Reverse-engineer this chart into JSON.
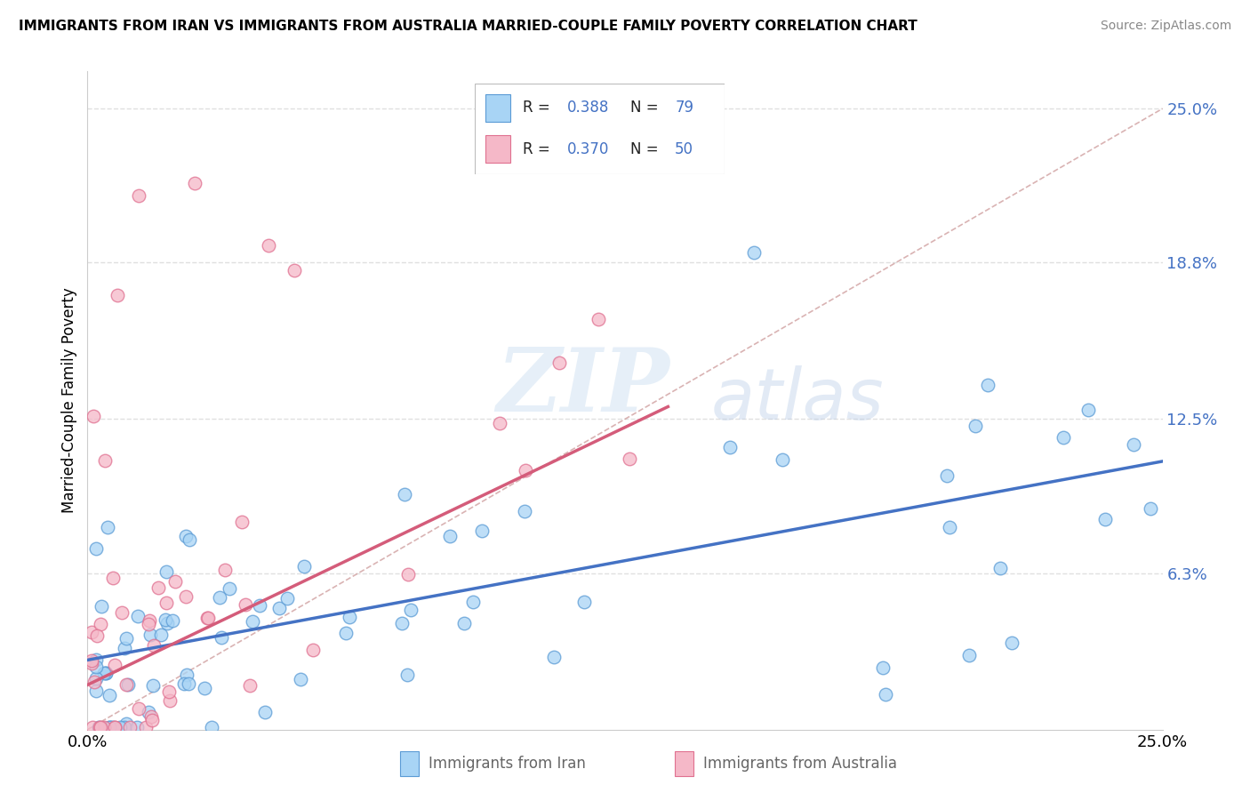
{
  "title": "IMMIGRANTS FROM IRAN VS IMMIGRANTS FROM AUSTRALIA MARRIED-COUPLE FAMILY POVERTY CORRELATION CHART",
  "source": "Source: ZipAtlas.com",
  "ylabel": "Married-Couple Family Poverty",
  "xmin": 0.0,
  "xmax": 0.25,
  "ymin": 0.0,
  "ymax": 0.265,
  "ytick_vals": [
    0.0,
    0.063,
    0.125,
    0.188,
    0.25
  ],
  "ytick_labels": [
    "",
    "6.3%",
    "12.5%",
    "18.8%",
    "25.0%"
  ],
  "xtick_vals": [
    0.0,
    0.25
  ],
  "xtick_labels": [
    "0.0%",
    "25.0%"
  ],
  "legend_labels": [
    "Immigrants from Iran",
    "Immigrants from Australia"
  ],
  "iran_color": "#a8d4f5",
  "australia_color": "#f5b8c8",
  "iran_edge_color": "#5b9bd5",
  "australia_edge_color": "#e07090",
  "iran_trend_color": "#4472c4",
  "australia_trend_color": "#d45c7a",
  "diagonal_color": "#d0a0a0",
  "watermark_zip": "ZIP",
  "watermark_atlas": "atlas",
  "background_color": "#ffffff",
  "grid_color": "#e0e0e0",
  "iran_trend_start_y": 0.028,
  "iran_trend_end_y": 0.108,
  "aus_trend_start_y": 0.018,
  "aus_trend_end_y": 0.13
}
